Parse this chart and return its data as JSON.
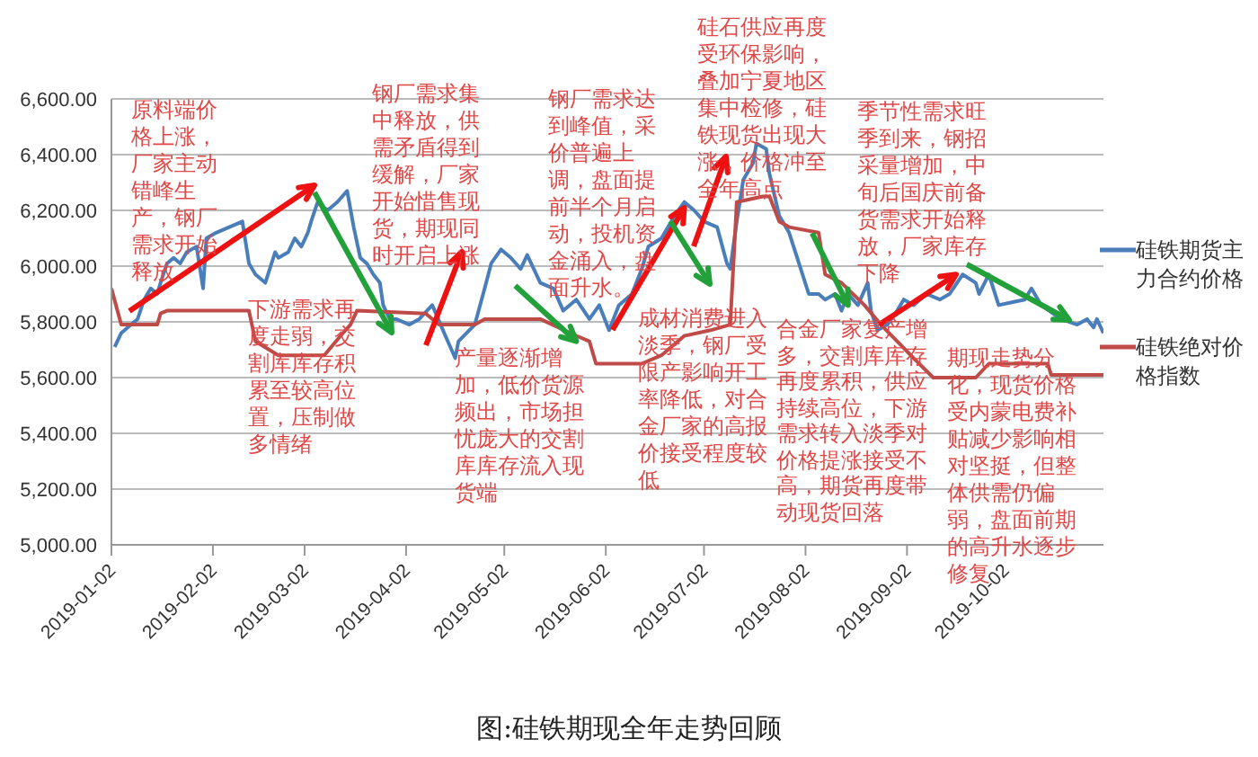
{
  "chart_data": {
    "type": "line",
    "title": "图:硅铁期现全年走势回顾",
    "xlim": [
      "2019-01-02",
      "2019-11-01"
    ],
    "xticks": [
      "2019-01-02",
      "2019-02-02",
      "2019-03-02",
      "2019-04-02",
      "2019-05-02",
      "2019-06-02",
      "2019-07-02",
      "2019-08-02",
      "2019-09-02",
      "2019-10-02"
    ],
    "ylim": [
      5000,
      6600
    ],
    "yticks": [
      {
        "value": 5000,
        "label": "5,000.00"
      },
      {
        "value": 5200,
        "label": "5,200.00"
      },
      {
        "value": 5400,
        "label": "5,400.00"
      },
      {
        "value": 5600,
        "label": "5,600.00"
      },
      {
        "value": 5800,
        "label": "5,800.00"
      },
      {
        "value": 6000,
        "label": "6,000.00"
      },
      {
        "value": 6200,
        "label": "6,200.00"
      },
      {
        "value": 6400,
        "label": "6,400.00"
      },
      {
        "value": 6600,
        "label": "6,600.00"
      }
    ],
    "grid": "y",
    "legend": "right",
    "series": [
      {
        "name": "硅铁期货主力合约价格",
        "color": "#4a7ebb",
        "x": [
          "2019-01-03",
          "2019-01-05",
          "2019-01-08",
          "2019-01-10",
          "2019-01-12",
          "2019-01-14",
          "2019-01-16",
          "2019-01-17",
          "2019-01-19",
          "2019-01-21",
          "2019-01-23",
          "2019-01-25",
          "2019-01-28",
          "2019-01-30",
          "2019-01-31",
          "2019-02-03",
          "2019-02-07",
          "2019-02-11",
          "2019-02-13",
          "2019-02-15",
          "2019-02-18",
          "2019-02-21",
          "2019-02-22",
          "2019-02-25",
          "2019-02-27",
          "2019-03-01",
          "2019-03-03",
          "2019-03-04",
          "2019-03-06",
          "2019-03-09",
          "2019-03-12",
          "2019-03-15",
          "2019-03-17",
          "2019-03-19",
          "2019-03-21",
          "2019-03-23",
          "2019-03-25",
          "2019-03-26",
          "2019-03-28",
          "2019-03-30",
          "2019-04-03",
          "2019-04-06",
          "2019-04-10",
          "2019-04-14",
          "2019-04-17",
          "2019-04-18",
          "2019-04-23",
          "2019-04-26",
          "2019-04-28",
          "2019-05-01",
          "2019-05-04",
          "2019-05-07",
          "2019-05-09",
          "2019-05-13",
          "2019-05-17",
          "2019-05-20",
          "2019-05-24",
          "2019-05-28",
          "2019-05-31",
          "2019-06-03",
          "2019-06-06",
          "2019-06-10",
          "2019-06-13",
          "2019-06-15",
          "2019-06-19",
          "2019-06-23",
          "2019-06-26",
          "2019-06-29",
          "2019-07-02",
          "2019-07-06",
          "2019-07-09",
          "2019-07-10",
          "2019-07-12",
          "2019-07-14",
          "2019-07-17",
          "2019-07-18",
          "2019-07-21",
          "2019-07-22",
          "2019-07-25",
          "2019-07-28",
          "2019-07-31",
          "2019-08-03",
          "2019-08-06",
          "2019-08-08",
          "2019-08-11",
          "2019-08-13",
          "2019-08-15",
          "2019-08-18",
          "2019-08-21",
          "2019-08-22",
          "2019-08-24",
          "2019-08-27",
          "2019-08-30",
          "2019-09-01",
          "2019-09-04",
          "2019-09-08",
          "2019-09-12",
          "2019-09-15",
          "2019-09-19",
          "2019-09-23",
          "2019-09-24",
          "2019-09-27",
          "2019-09-30",
          "2019-10-04",
          "2019-10-08",
          "2019-10-10",
          "2019-10-13",
          "2019-10-19",
          "2019-10-24",
          "2019-10-27",
          "2019-10-29",
          "2019-10-30",
          "2019-11-01"
        ],
        "values": [
          5710,
          5760,
          5790,
          5810,
          5880,
          5920,
          5900,
          5940,
          6010,
          6030,
          6010,
          6050,
          6070,
          5920,
          6100,
          6120,
          6140,
          6160,
          6010,
          5970,
          5940,
          6050,
          6030,
          6050,
          6100,
          6070,
          6120,
          6160,
          6230,
          6200,
          6230,
          6270,
          6140,
          6030,
          6010,
          5970,
          5940,
          5860,
          5810,
          5810,
          5790,
          5810,
          5860,
          5750,
          5670,
          5730,
          5790,
          5920,
          6010,
          6060,
          6030,
          5990,
          6040,
          5940,
          5920,
          5840,
          5880,
          5810,
          5860,
          5770,
          5860,
          5900,
          5990,
          6070,
          6100,
          6180,
          6230,
          6200,
          6160,
          6140,
          6010,
          5990,
          6160,
          6310,
          6370,
          6440,
          6420,
          6330,
          6180,
          6120,
          6010,
          5900,
          5900,
          5880,
          5900,
          5840,
          5900,
          5860,
          5940,
          5840,
          5770,
          5790,
          5840,
          5880,
          5860,
          5900,
          5880,
          5900,
          5970,
          5940,
          5900,
          5970,
          5860,
          5870,
          5880,
          5920,
          5860,
          5810,
          5790,
          5810,
          5780,
          5810,
          5760
        ]
      },
      {
        "name": "硅铁绝对价格指数",
        "color": "#be4b48",
        "x": [
          "2019-01-02",
          "2019-01-05",
          "2019-01-16",
          "2019-01-17",
          "2019-01-19",
          "2019-02-13",
          "2019-02-15",
          "2019-02-22",
          "2019-03-08",
          "2019-03-13",
          "2019-03-16",
          "2019-03-18",
          "2019-04-08",
          "2019-04-12",
          "2019-04-23",
          "2019-04-26",
          "2019-05-13",
          "2019-05-24",
          "2019-05-28",
          "2019-05-30",
          "2019-06-13",
          "2019-06-19",
          "2019-06-26",
          "2019-07-04",
          "2019-07-10",
          "2019-07-12",
          "2019-07-20",
          "2019-07-22",
          "2019-07-25",
          "2019-07-28",
          "2019-08-06",
          "2019-08-08",
          "2019-08-13",
          "2019-08-20",
          "2019-08-25",
          "2019-08-30",
          "2019-09-04",
          "2019-09-10",
          "2019-09-23",
          "2019-09-27",
          "2019-10-15",
          "2019-10-16",
          "2019-11-01"
        ],
        "values": [
          5920,
          5790,
          5790,
          5830,
          5840,
          5840,
          5730,
          5680,
          5680,
          5750,
          5790,
          5840,
          5830,
          5790,
          5790,
          5810,
          5810,
          5750,
          5730,
          5650,
          5650,
          5680,
          5750,
          5770,
          5790,
          6230,
          6250,
          6250,
          6160,
          6140,
          6120,
          5970,
          5940,
          5860,
          5790,
          5730,
          5670,
          5600,
          5600,
          5650,
          5650,
          5610,
          5610
        ]
      }
    ],
    "annotations": [
      "原料端价格上涨，厂家主动错峰生产，钢厂需求开始释放",
      "下游需求再度走弱，交割库库存积累至较高位置，压制做多情绪",
      "钢厂需求集中释放，供需矛盾得到缓解，厂家开始惜售现货，期现同时开启上涨",
      {
        "text": "产量逐渐增加，低价货源频出，市场担忧庞大的交割库库存流入现货端",
        "x": "2019-05-24",
        "y": 5730
      },
      {
        "text": "钢厂需求达到峰值，采价普遍上调，盘面提前半个月启动，投机资金涌入，盘面升水。",
        "x": "2019-06-26",
        "y": 6210
      },
      "成材消费进入淡季，钢厂受限产影响开工率降低，对合金厂家的高报价接受程度较低",
      "硅石供应再度受环保影响，叠加宁夏地区集中检修，硅铁现货出现大涨，价格冲至全年高点",
      {
        "text": "合金厂家复产增多，交割库库存再度累积，供应持续高位，下游需求转入淡季对价格提涨接受不高，期货再度带动现货回落",
        "x": "2019-08-15",
        "y": 5860
      },
      {
        "text": "季节性需求旺季到来，钢招采量增加，中旬后国庆前备货需求开始释放，厂家库存下降",
        "x": "2019-09-17",
        "y": 5970
      },
      "期现走势分化，现货价格受内蒙电费补贴减少影响相对坚挺，但整体供需仍偏弱，盘面前期的高升水逐步修复"
    ]
  }
}
